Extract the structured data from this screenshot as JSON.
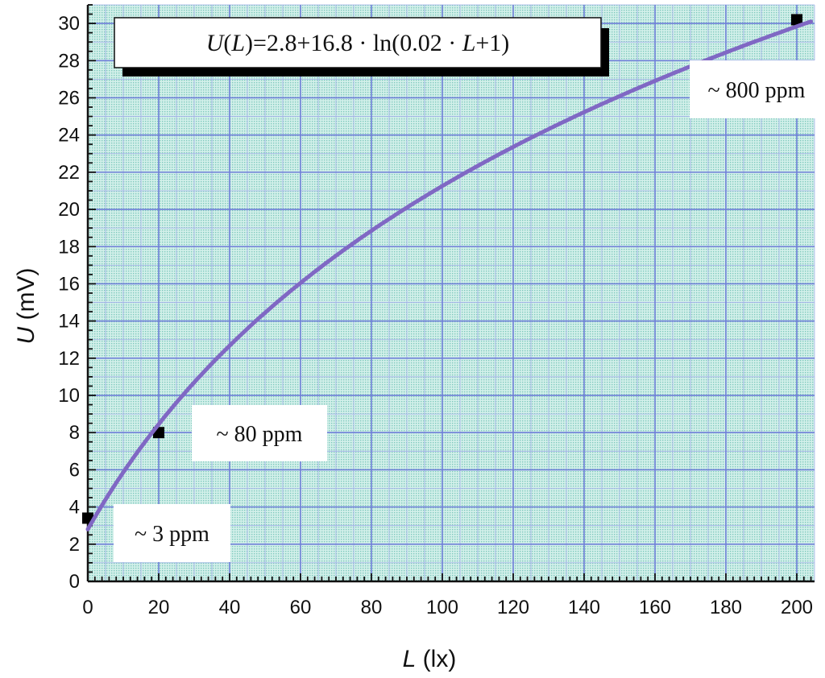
{
  "chart_data": {
    "type": "line",
    "title": "",
    "formula": {
      "lhs_italic": "U",
      "paren_open": "(",
      "var_italic": "L",
      "paren_close_eq": ")=2.8+16.8 · ln(0.02 · ",
      "var2_italic": "L",
      "tail": "+1)"
    },
    "xlabel": {
      "symbol": "L",
      "unit": " (lx)"
    },
    "ylabel": {
      "symbol": "U",
      "unit": " (mV)"
    },
    "xlim": [
      0,
      205
    ],
    "ylim": [
      0,
      31
    ],
    "x_ticks": [
      0,
      20,
      40,
      60,
      80,
      100,
      120,
      140,
      160,
      180,
      200
    ],
    "y_ticks": [
      0,
      2,
      4,
      6,
      8,
      10,
      12,
      14,
      16,
      18,
      20,
      22,
      24,
      26,
      28,
      30
    ],
    "grid": true,
    "series": [
      {
        "function": {
          "a": 2.8,
          "b": 16.8,
          "c": 0.02
        },
        "color": "#8068c4"
      }
    ],
    "points": [
      {
        "x": 0,
        "y": 3.4,
        "label": "~ 3 ppm"
      },
      {
        "x": 20,
        "y": 8.0,
        "label": "~ 80 ppm"
      },
      {
        "x": 200,
        "y": 30.2,
        "label": "~ 800 ppm"
      }
    ],
    "colors": {
      "plot_background": "#c8ece6",
      "major_grid": "#6f7fd8",
      "curve": "#8068c4"
    }
  }
}
